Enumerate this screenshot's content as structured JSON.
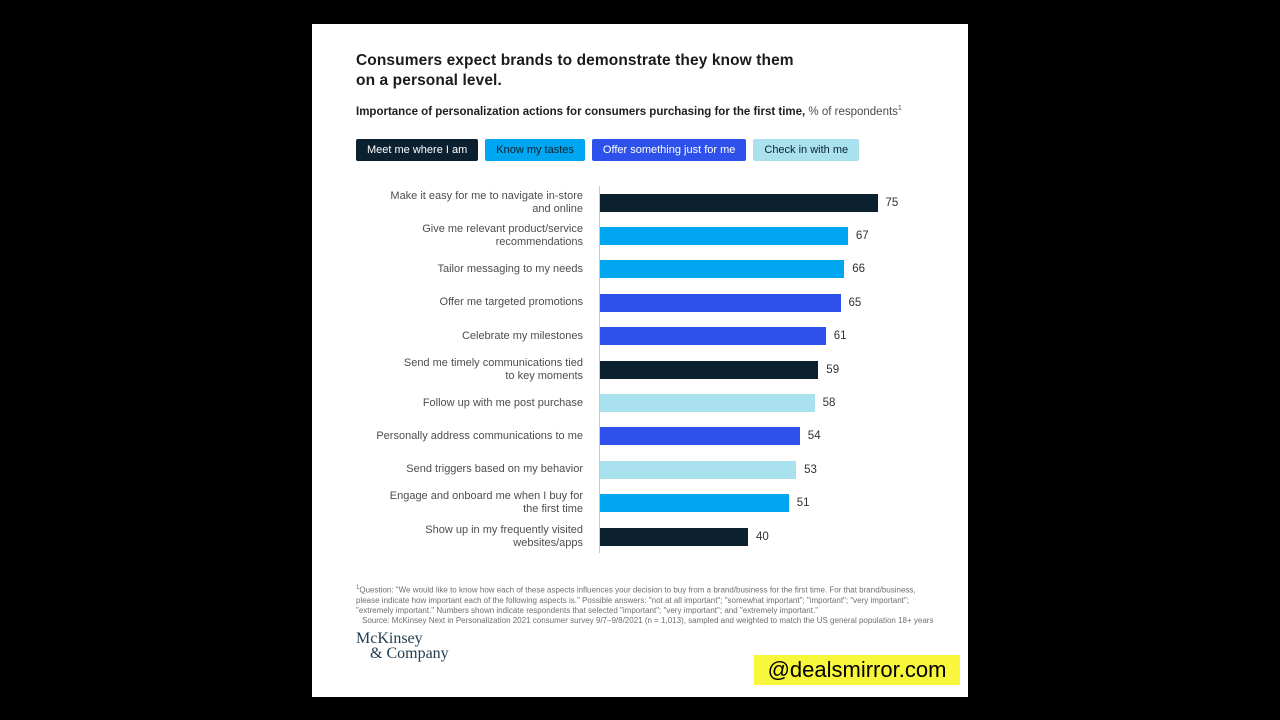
{
  "page": {
    "background": "#000000",
    "card_background": "#ffffff"
  },
  "chart_data": {
    "type": "bar",
    "orientation": "horizontal",
    "title_lines": [
      "Consumers expect brands to demonstrate they know them",
      "on a personal level."
    ],
    "title": "Consumers expect brands to demonstrate they know them on a personal level.",
    "subtitle_bold": "Importance of personalization actions for consumers purchasing for the first time,",
    "subtitle_regular": " % of respondents",
    "subtitle_footnote_marker": "1",
    "xlim": [
      0,
      85
    ],
    "grid": false,
    "legend_position": "top",
    "colors": {
      "meet": "#0c2130",
      "know": "#00a6f0",
      "offer": "#2e51ec",
      "check": "#a9e2ee"
    },
    "legend": [
      {
        "id": "meet",
        "label": "Meet me where I am",
        "bg": "#0c2130",
        "text": "#ffffff"
      },
      {
        "id": "know",
        "label": "Know my tastes",
        "bg": "#00a6f0",
        "text": "#0c2130"
      },
      {
        "id": "offer",
        "label": "Offer something just for me",
        "bg": "#2e51ec",
        "text": "#ffffff"
      },
      {
        "id": "check",
        "label": "Check in with me",
        "bg": "#a9e2ee",
        "text": "#0c2130"
      }
    ],
    "bars": [
      {
        "label": "Make it easy for me to navigate in-store and online",
        "lines": [
          "Make it easy for me to navigate in-store",
          "and online"
        ],
        "value": 75,
        "group": "meet"
      },
      {
        "label": "Give me relevant product/service recommendations",
        "lines": [
          "Give me relevant product/service",
          "recommendations"
        ],
        "value": 67,
        "group": "know"
      },
      {
        "label": "Tailor messaging to my needs",
        "lines": [
          "Tailor messaging to my needs"
        ],
        "value": 66,
        "group": "know"
      },
      {
        "label": "Offer me targeted promotions",
        "lines": [
          "Offer me targeted promotions"
        ],
        "value": 65,
        "group": "offer"
      },
      {
        "label": "Celebrate my milestones",
        "lines": [
          "Celebrate my milestones"
        ],
        "value": 61,
        "group": "offer"
      },
      {
        "label": "Send me timely communications tied to key moments",
        "lines": [
          "Send me timely communications tied",
          "to key moments"
        ],
        "value": 59,
        "group": "meet"
      },
      {
        "label": "Follow up with me post purchase",
        "lines": [
          "Follow up with me post purchase"
        ],
        "value": 58,
        "group": "check"
      },
      {
        "label": "Personally address communications to me",
        "lines": [
          "Personally address communications to me"
        ],
        "value": 54,
        "group": "offer"
      },
      {
        "label": "Send triggers based on my behavior",
        "lines": [
          "Send triggers based on my behavior"
        ],
        "value": 53,
        "group": "check"
      },
      {
        "label": "Engage and onboard me when I buy for the first time",
        "lines": [
          "Engage and onboard me when I buy for",
          "the first time"
        ],
        "value": 51,
        "group": "know"
      },
      {
        "label": "Show up in my frequently visited websites/apps",
        "lines": [
          "Show up in my frequently visited",
          "websites/apps"
        ],
        "value": 40,
        "group": "meet"
      }
    ]
  },
  "footnote": {
    "marker": "1",
    "line1": "Question: \"We would like to know how each of these aspects influences your decision to buy from a brand/business for the first time. For that brand/business,",
    "line2": "please indicate how important each of the following aspects is.\" Possible answers: \"not at all important\"; \"somewhat important\"; \"important\"; \"very important\";",
    "line3": "\"extremely important.\" Numbers shown indicate respondents that selected \"important\"; \"very important\"; and \"extremely important.\"",
    "source": "Source: McKinsey Next in Personalization 2021 consumer survey 9/7–9/8/2021 (n = 1,013), sampled and weighted to match the US general population 18+ years"
  },
  "logo": {
    "line1": "McKinsey",
    "line2": "& Company"
  },
  "watermark": {
    "text": "@dealsmirror.com",
    "background": "#f9f73b",
    "text_color": "#000000"
  }
}
